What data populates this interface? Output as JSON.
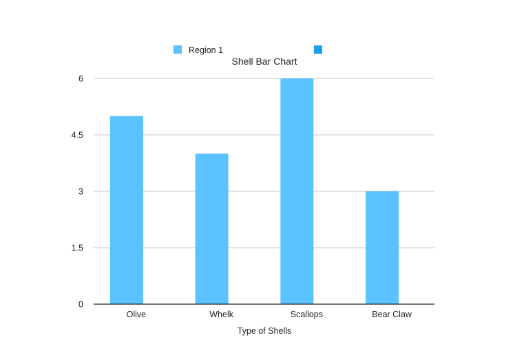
{
  "chart_data": {
    "type": "bar",
    "title": "Shell Bar Chart",
    "xlabel": "Type of Shells",
    "ylabel": "",
    "categories": [
      "Olive",
      "Whelk",
      "Scallops",
      "Bear Claw"
    ],
    "series": [
      {
        "name": "Region 1",
        "values": [
          5,
          4,
          6,
          3
        ],
        "color": "#5ac3ff"
      },
      {
        "name": "",
        "values": [
          0,
          0,
          0,
          0
        ],
        "color": "#1a9ff2"
      }
    ],
    "ylim": [
      0,
      6
    ],
    "yticks": [
      0,
      1.5,
      3,
      4.5,
      6
    ],
    "ytick_labels": [
      "0",
      "1.5",
      "3",
      "4.5",
      "6"
    ],
    "grid": true,
    "legend_position": "top-center",
    "colors": {
      "gridline": "#c8c8c8",
      "axis": "#222222"
    }
  }
}
